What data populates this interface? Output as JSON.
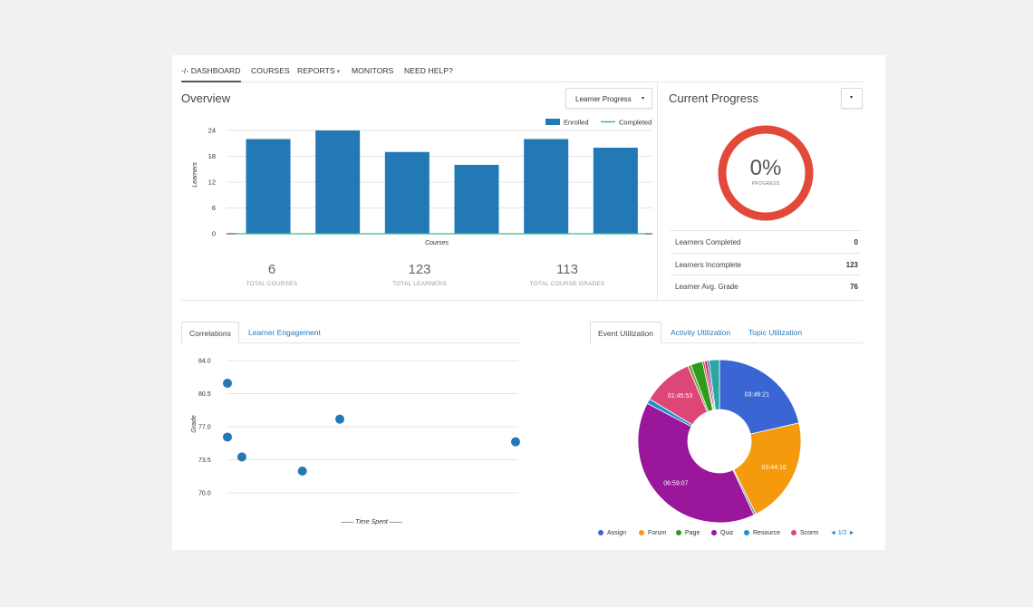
{
  "nav": {
    "items": [
      {
        "label": "-/- DASHBOARD",
        "active": true,
        "icon": "dashboard-icon"
      },
      {
        "label": "COURSES"
      },
      {
        "label": "REPORTS",
        "caret": "▾"
      },
      {
        "label": "MONITORS"
      },
      {
        "label": "NEED HELP?"
      }
    ]
  },
  "overview": {
    "title": "Overview",
    "dropdown": {
      "label": "Learner Progress",
      "caret": "▾"
    }
  },
  "stats": [
    {
      "value": "6",
      "label": "TOTAL COURSES"
    },
    {
      "value": "123",
      "label": "TOTAL LEARNERS"
    },
    {
      "value": "113",
      "label": "TOTAL COURSE GRADES"
    }
  ],
  "current_progress": {
    "title": "Current Progress",
    "dropdown_caret": "▾",
    "percent": "0%",
    "percent_label": "PROGRESS",
    "ring_color": "#e3493a",
    "rows": [
      {
        "label": "Learners Completed",
        "value": "0"
      },
      {
        "label": "Learners Incomplete",
        "value": "123"
      },
      {
        "label": "Learner Avg. Grade",
        "value": "76"
      }
    ]
  },
  "tabs_left": [
    {
      "label": "Correlations",
      "active": true
    },
    {
      "label": "Learner Engagement"
    }
  ],
  "tabs_right": [
    {
      "label": "Event Utilization",
      "active": true
    },
    {
      "label": "Activity Utilization"
    },
    {
      "label": "Topic Utilization"
    }
  ],
  "chart_data": [
    {
      "type": "bar",
      "categories": [
        "",
        "",
        "",
        "",
        "",
        ""
      ],
      "series": [
        {
          "name": "Enrolled",
          "values": [
            22,
            24,
            19,
            16,
            22,
            20
          ],
          "color": "#2279b5"
        },
        {
          "name": "Completed",
          "values": [
            0,
            0,
            0,
            0,
            0,
            0
          ],
          "color": "#3cba8a"
        }
      ],
      "xlabel": "Courses",
      "ylabel": "Learners",
      "ylim": [
        0,
        24
      ],
      "yticks": [
        "0",
        "6",
        "12",
        "18",
        "24"
      ],
      "legend": "top-right"
    },
    {
      "type": "scatter",
      "points": [
        {
          "x": 0.0,
          "y": 81.6
        },
        {
          "x": 0.0,
          "y": 75.9
        },
        {
          "x": 0.05,
          "y": 73.8
        },
        {
          "x": 0.26,
          "y": 72.3
        },
        {
          "x": 0.39,
          "y": 77.8
        },
        {
          "x": 1.0,
          "y": 75.4
        }
      ],
      "color": "#2279b5",
      "xlabel": "—— Time Spent ——",
      "ylabel": "Grade",
      "ylim": [
        70.0,
        84.0
      ],
      "yticks": [
        "84.0",
        "80.5",
        "77.0",
        "73.5",
        "70.0"
      ]
    },
    {
      "type": "pie",
      "donut": true,
      "slices": [
        {
          "name": "Assign",
          "value": 13581,
          "label": "03:46:21",
          "color": "#3a66d4"
        },
        {
          "name": "Forum",
          "value": 13456,
          "label": "03:44:16",
          "color": "#f59a0c"
        },
        {
          "name": "",
          "value": 280,
          "label": "",
          "color": "#7d8ab0"
        },
        {
          "name": "Quiz",
          "value": 25147,
          "label": "06:59:07",
          "color": "#9a169a"
        },
        {
          "name": "Resource",
          "value": 620,
          "label": "",
          "color": "#1f93c9"
        },
        {
          "name": "Scorm",
          "value": 6353,
          "label": "01:45:53",
          "color": "#dd4777"
        },
        {
          "name": "",
          "value": 400,
          "label": "",
          "color": "#7c9a3a"
        },
        {
          "name": "Page",
          "value": 1500,
          "label": "",
          "color": "#2f9a1b"
        },
        {
          "name": "",
          "value": 250,
          "label": "",
          "color": "#e23b3b"
        },
        {
          "name": "",
          "value": 320,
          "label": "",
          "color": "#a12b71"
        },
        {
          "name": "",
          "value": 250,
          "label": "",
          "color": "#6a3aa3"
        },
        {
          "name": "",
          "value": 1300,
          "label": "",
          "color": "#2aa6a3"
        }
      ],
      "legend": [
        {
          "name": "Assign",
          "color": "#3a66d4"
        },
        {
          "name": "Forum",
          "color": "#f59a0c"
        },
        {
          "name": "Page",
          "color": "#2f9a1b"
        },
        {
          "name": "Quiz",
          "color": "#9a169a"
        },
        {
          "name": "Resource",
          "color": "#1f93c9"
        },
        {
          "name": "Scorm",
          "color": "#dd4777"
        }
      ],
      "pager": "◄ 1/2 ►",
      "legend_position": "bottom"
    }
  ]
}
